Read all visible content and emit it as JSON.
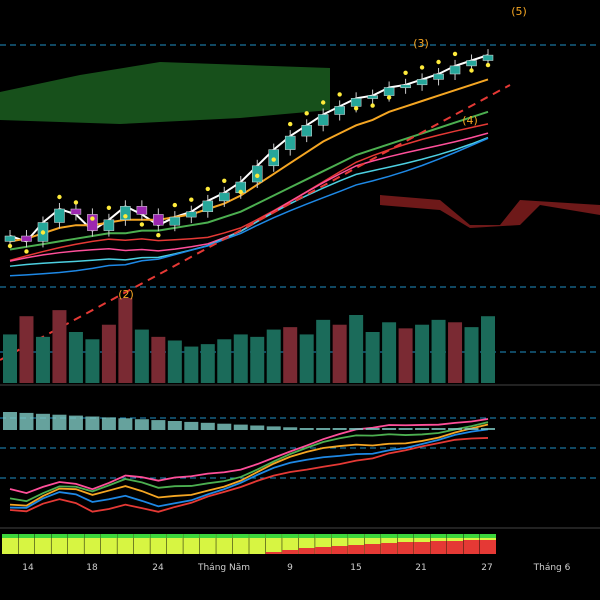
{
  "chart_data": {
    "type": "line",
    "description_words": "candlestick price chart with moving averages, volume, oscillator and heat strip",
    "xaxis": {
      "labels": [
        "14",
        "18",
        "24",
        "Tháng Năm",
        "9",
        "15",
        "21",
        "27",
        "Tháng 6"
      ]
    },
    "wave_labels": [
      "(2)",
      "(3)",
      "(4)",
      "(5)"
    ],
    "colors": {
      "background": "#000000",
      "up_candle": "#26a69a",
      "down_candle": "#9c27b0",
      "ma_white": "#ffffff",
      "ma_orange": "#f5a623",
      "ma_green": "#4caf50",
      "ma_red": "#e53935",
      "ma_pink": "#ff4f9a",
      "ma_cyan": "#4dd0e1",
      "ma_blue": "#1e88e5",
      "yellow_dots": "#ffeb3b",
      "cloud_green": "#1b5e20",
      "cloud_red": "#7a1c1c",
      "dashed_cyan": "#29b6f6",
      "volume_up": "#1b6b5a",
      "volume_down": "#7a2a33"
    },
    "series": [
      {
        "values": [
          120,
          118,
          125,
          130,
          128,
          122,
          126,
          131,
          128,
          124,
          127,
          129,
          133,
          136,
          140,
          146,
          152,
          157,
          161,
          165,
          168,
          171,
          172,
          175,
          176,
          178,
          180,
          183,
          185,
          187
        ]
      },
      {
        "values": [
          118,
          119,
          121,
          123,
          124,
          124,
          125,
          126,
          126,
          126,
          127,
          128,
          130,
          132,
          135,
          139,
          143,
          147,
          151,
          155,
          158,
          161,
          163,
          166,
          168,
          170,
          172,
          174,
          176,
          178
        ]
      },
      {
        "values": [
          115,
          116,
          117,
          118,
          119,
          120,
          121,
          121,
          122,
          122,
          123,
          124,
          125,
          127,
          129,
          132,
          135,
          138,
          141,
          144,
          147,
          150,
          152,
          154,
          156,
          158,
          160,
          162,
          164,
          166
        ]
      }
    ],
    "volume": [
      40,
      55,
      38,
      60,
      42,
      36,
      48,
      70,
      44,
      38,
      35,
      30,
      32,
      36,
      40,
      38,
      44,
      46,
      40,
      52,
      48,
      56,
      42,
      50,
      45,
      48,
      52,
      50,
      46,
      55
    ],
    "volume_up": [
      1,
      0,
      1,
      0,
      1,
      1,
      0,
      0,
      1,
      0,
      1,
      1,
      1,
      1,
      1,
      1,
      1,
      0,
      1,
      1,
      0,
      1,
      1,
      1,
      0,
      1,
      1,
      0,
      1,
      1
    ],
    "heat_strip_pct_red": [
      0,
      0,
      0,
      0,
      0,
      0,
      0,
      0,
      0,
      0,
      0,
      0,
      0,
      0,
      0,
      0,
      10,
      20,
      30,
      35,
      40,
      45,
      50,
      55,
      60,
      60,
      65,
      65,
      70,
      70
    ]
  }
}
